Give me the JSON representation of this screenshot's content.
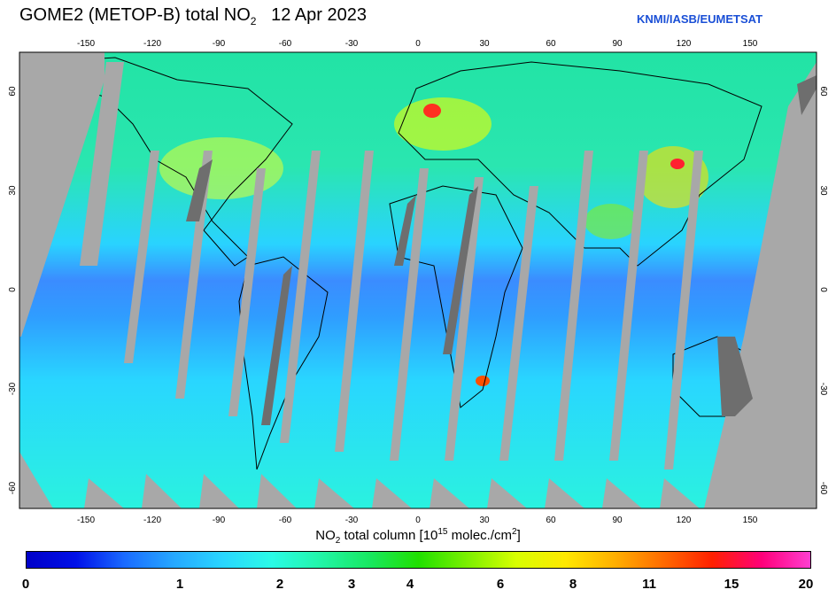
{
  "title": {
    "main": "GOME2 (METOP-B) total NO",
    "sub": "2",
    "date": "12 Apr 2023"
  },
  "credit": "KNMI/IASB/EUMETSAT",
  "x_label": {
    "prefix": "NO",
    "sub": "2",
    "middle": " total column [10",
    "exp": "15",
    "after": " molec./cm",
    "exp2": "2",
    "close": "]"
  },
  "lon_ticks": [
    "-150",
    "-120",
    "-90",
    "-60",
    "-30",
    "0",
    "30",
    "60",
    "90",
    "120",
    "150"
  ],
  "lat_ticks": [
    "60",
    "30",
    "0",
    "-30",
    "-60"
  ],
  "colorbar": {
    "labels": [
      "0",
      "1",
      "2",
      "3",
      "4",
      "6",
      "8",
      "11",
      "15",
      "20"
    ],
    "colors": [
      "#0000c8",
      "#0010e8",
      "#1a6bff",
      "#26a8ff",
      "#29d6ff",
      "#2afbe6",
      "#22f5a8",
      "#18e860",
      "#20e000",
      "#7df000",
      "#d8ff00",
      "#ffe800",
      "#ffb000",
      "#ff6a00",
      "#ff2000",
      "#ff007a",
      "#ff3ed0"
    ]
  },
  "chart_data": {
    "type": "heatmap",
    "title": "GOME2 (METOP-B) total NO2 12 Apr 2023",
    "xlabel": "NO2 total column [10^15 molec./cm^2]",
    "colorbar_range": [
      0,
      20
    ],
    "colorbar_ticks": [
      0,
      1,
      2,
      3,
      4,
      6,
      8,
      11,
      15,
      20
    ],
    "lon_range": [
      -180,
      180
    ],
    "lat_range": [
      -70,
      70
    ]
  }
}
